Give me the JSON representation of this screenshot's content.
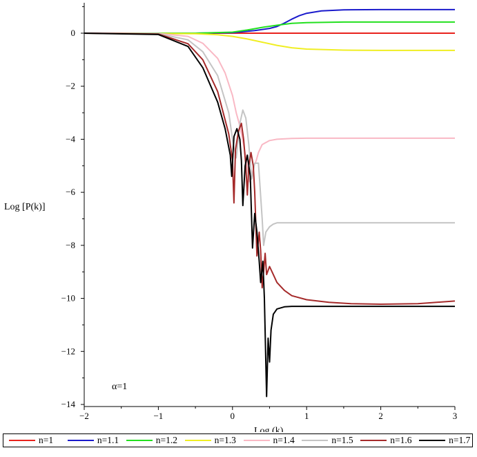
{
  "chart_data": {
    "type": "line",
    "xlabel": "Log (k)",
    "ylabel": "Log [P(k)]",
    "annotation": "α=1",
    "xlim": [
      -2,
      3
    ],
    "ylim": [
      -14,
      1.2
    ],
    "xticks": [
      -2,
      -1,
      0,
      1,
      2,
      3
    ],
    "xtick_labels": [
      "−2",
      "−1",
      "0",
      "1",
      "2",
      "3"
    ],
    "yticks": [
      0,
      -2,
      -4,
      -6,
      -8,
      -10,
      -12,
      -14
    ],
    "ytick_labels": [
      "0",
      "−2",
      "−4",
      "−6",
      "−8",
      "−10",
      "−12",
      "−14"
    ],
    "legend_position": "bottom",
    "grid": false,
    "series": [
      {
        "name": "n=1",
        "color": "#e8221c",
        "x": [
          -2,
          3
        ],
        "y": [
          0,
          0
        ]
      },
      {
        "name": "n=1.1",
        "color": "#1a1acc",
        "x": [
          -2,
          -0.5,
          0,
          0.3,
          0.5,
          0.6,
          0.7,
          0.8,
          0.9,
          1.0,
          1.2,
          1.5,
          2,
          2.5,
          3
        ],
        "y": [
          0,
          0,
          0.02,
          0.1,
          0.18,
          0.25,
          0.38,
          0.53,
          0.66,
          0.75,
          0.84,
          0.88,
          0.89,
          0.89,
          0.89
        ]
      },
      {
        "name": "n=1.2",
        "color": "#22e01f",
        "x": [
          -2,
          -0.5,
          0,
          0.2,
          0.4,
          0.6,
          0.8,
          1.0,
          1.5,
          2,
          3
        ],
        "y": [
          0,
          0,
          0.04,
          0.12,
          0.22,
          0.3,
          0.37,
          0.4,
          0.42,
          0.42,
          0.42
        ]
      },
      {
        "name": "n=1.3",
        "color": "#f0ee22",
        "x": [
          -2,
          -0.5,
          -0.2,
          0,
          0.2,
          0.4,
          0.6,
          0.8,
          1.0,
          1.5,
          2,
          3
        ],
        "y": [
          0,
          -0.02,
          -0.06,
          -0.12,
          -0.22,
          -0.34,
          -0.46,
          -0.55,
          -0.6,
          -0.64,
          -0.65,
          -0.65
        ]
      },
      {
        "name": "n=1.4",
        "color": "#f9b8c4",
        "x": [
          -2,
          -1,
          -0.6,
          -0.4,
          -0.2,
          -0.1,
          0,
          0.05,
          0.1,
          0.15,
          0.2,
          0.23,
          0.26,
          0.29,
          0.32,
          0.35,
          0.4,
          0.5,
          0.6,
          0.8,
          1,
          1.5,
          2,
          3
        ],
        "y": [
          0,
          -0.01,
          -0.12,
          -0.38,
          -0.95,
          -1.5,
          -2.35,
          -3.0,
          -3.5,
          -4.2,
          -5.0,
          -5.6,
          -5.4,
          -5.0,
          -4.8,
          -4.5,
          -4.2,
          -4.05,
          -4.0,
          -3.97,
          -3.96,
          -3.96,
          -3.96,
          -3.96
        ]
      },
      {
        "name": "n=1.5",
        "color": "#c4c4c4",
        "x": [
          -2,
          -1,
          -0.6,
          -0.4,
          -0.2,
          -0.05,
          0,
          0.05,
          0.1,
          0.14,
          0.18,
          0.22,
          0.26,
          0.3,
          0.35,
          0.4,
          0.42,
          0.45,
          0.5,
          0.55,
          0.6,
          0.8,
          1,
          2,
          3
        ],
        "y": [
          0,
          -0.02,
          -0.25,
          -0.7,
          -1.6,
          -3.0,
          -4.0,
          -4.7,
          -3.4,
          -2.9,
          -3.2,
          -4.2,
          -5.5,
          -4.9,
          -4.9,
          -7.0,
          -8.0,
          -7.5,
          -7.3,
          -7.2,
          -7.15,
          -7.15,
          -7.15,
          -7.15,
          -7.15
        ]
      },
      {
        "name": "n=1.6",
        "color": "#a52a2a",
        "x": [
          -2,
          -1,
          -0.6,
          -0.4,
          -0.2,
          -0.05,
          0.0,
          0.02,
          0.04,
          0.08,
          0.12,
          0.15,
          0.18,
          0.2,
          0.22,
          0.25,
          0.28,
          0.3,
          0.33,
          0.36,
          0.38,
          0.4,
          0.42,
          0.44,
          0.46,
          0.5,
          0.55,
          0.6,
          0.7,
          0.8,
          1.0,
          1.3,
          1.6,
          2.0,
          2.5,
          3.0
        ],
        "y": [
          0,
          -0.03,
          -0.4,
          -1.0,
          -2.2,
          -3.8,
          -4.8,
          -6.4,
          -4.4,
          -3.7,
          -3.4,
          -4.0,
          -5.0,
          -6.1,
          -5.0,
          -4.5,
          -5.0,
          -6.0,
          -8.4,
          -7.5,
          -8.2,
          -9.6,
          -9.0,
          -8.3,
          -9.1,
          -8.8,
          -9.1,
          -9.4,
          -9.7,
          -9.9,
          -10.05,
          -10.15,
          -10.2,
          -10.22,
          -10.2,
          -10.1
        ]
      },
      {
        "name": "n=1.7",
        "color": "#000000",
        "x": [
          -2,
          -1,
          -0.6,
          -0.4,
          -0.2,
          -0.1,
          -0.03,
          -0.01,
          0.02,
          0.06,
          0.1,
          0.12,
          0.14,
          0.17,
          0.2,
          0.24,
          0.27,
          0.3,
          0.33,
          0.36,
          0.38,
          0.41,
          0.43,
          0.46,
          0.48,
          0.5,
          0.52,
          0.55,
          0.6,
          0.7,
          0.8,
          1.0,
          1.5,
          2.0,
          2.5,
          3.0
        ],
        "y": [
          0,
          -0.05,
          -0.5,
          -1.3,
          -2.6,
          -3.6,
          -4.6,
          -5.4,
          -3.9,
          -3.6,
          -4.0,
          -4.8,
          -6.5,
          -5.0,
          -4.6,
          -5.4,
          -8.1,
          -6.8,
          -7.5,
          -8.6,
          -9.4,
          -8.6,
          -10.0,
          -13.7,
          -11.5,
          -12.4,
          -11.2,
          -10.6,
          -10.4,
          -10.32,
          -10.3,
          -10.3,
          -10.3,
          -10.3,
          -10.3,
          -10.3
        ]
      }
    ]
  }
}
